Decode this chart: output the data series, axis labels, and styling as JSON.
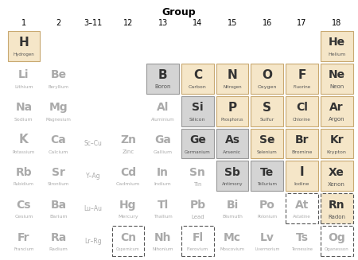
{
  "title": "Group",
  "col_labels": [
    "1",
    "2",
    "3–11",
    "12",
    "13",
    "14",
    "15",
    "16",
    "17",
    "18"
  ],
  "background": "#ffffff",
  "tan_color": "#f5e6c8",
  "gray_color": "#d4d4d4",
  "white_color": "#ffffff",
  "tan_border": "#c8a870",
  "gray_border": "#999999",
  "cells": [
    {
      "row": 0,
      "col": 0,
      "symbol": "H",
      "name": "Hydrogen",
      "type": "tan",
      "dashed": false
    },
    {
      "row": 0,
      "col": 9,
      "symbol": "He",
      "name": "Helium",
      "type": "tan",
      "dashed": false
    },
    {
      "row": 1,
      "col": 0,
      "symbol": "Li",
      "name": "Lithium",
      "type": "white",
      "dashed": false
    },
    {
      "row": 1,
      "col": 1,
      "symbol": "Be",
      "name": "Beryllium",
      "type": "white",
      "dashed": false
    },
    {
      "row": 1,
      "col": 4,
      "symbol": "B",
      "name": "Boron",
      "type": "gray",
      "dashed": false
    },
    {
      "row": 1,
      "col": 5,
      "symbol": "C",
      "name": "Carbon",
      "type": "tan",
      "dashed": false
    },
    {
      "row": 1,
      "col": 6,
      "symbol": "N",
      "name": "Nitrogen",
      "type": "tan",
      "dashed": false
    },
    {
      "row": 1,
      "col": 7,
      "symbol": "O",
      "name": "Oxygen",
      "type": "tan",
      "dashed": false
    },
    {
      "row": 1,
      "col": 8,
      "symbol": "F",
      "name": "Fluorine",
      "type": "tan",
      "dashed": false
    },
    {
      "row": 1,
      "col": 9,
      "symbol": "Ne",
      "name": "Neon",
      "type": "tan",
      "dashed": false
    },
    {
      "row": 2,
      "col": 0,
      "symbol": "Na",
      "name": "Sodium",
      "type": "white",
      "dashed": false
    },
    {
      "row": 2,
      "col": 1,
      "symbol": "Mg",
      "name": "Magnesium",
      "type": "white",
      "dashed": false
    },
    {
      "row": 2,
      "col": 4,
      "symbol": "Al",
      "name": "Aluminium",
      "type": "white",
      "dashed": false
    },
    {
      "row": 2,
      "col": 5,
      "symbol": "Si",
      "name": "Silicon",
      "type": "gray",
      "dashed": false
    },
    {
      "row": 2,
      "col": 6,
      "symbol": "P",
      "name": "Phosphorus",
      "type": "tan",
      "dashed": false
    },
    {
      "row": 2,
      "col": 7,
      "symbol": "S",
      "name": "Sulfur",
      "type": "tan",
      "dashed": false
    },
    {
      "row": 2,
      "col": 8,
      "symbol": "Cl",
      "name": "Chlorine",
      "type": "tan",
      "dashed": false
    },
    {
      "row": 2,
      "col": 9,
      "symbol": "Ar",
      "name": "Argon",
      "type": "tan",
      "dashed": false
    },
    {
      "row": 3,
      "col": 0,
      "symbol": "K",
      "name": "Potassium",
      "type": "white",
      "dashed": false
    },
    {
      "row": 3,
      "col": 1,
      "symbol": "Ca",
      "name": "Calcium",
      "type": "white",
      "dashed": false
    },
    {
      "row": 3,
      "col": 2,
      "symbol": "Sc–Cu",
      "name": "",
      "type": "white",
      "dashed": false
    },
    {
      "row": 3,
      "col": 3,
      "symbol": "Zn",
      "name": "Zinc",
      "type": "white",
      "dashed": false
    },
    {
      "row": 3,
      "col": 4,
      "symbol": "Ga",
      "name": "Gallium",
      "type": "white",
      "dashed": false
    },
    {
      "row": 3,
      "col": 5,
      "symbol": "Ge",
      "name": "Germanium",
      "type": "gray",
      "dashed": false
    },
    {
      "row": 3,
      "col": 6,
      "symbol": "As",
      "name": "Arsenic",
      "type": "gray",
      "dashed": false
    },
    {
      "row": 3,
      "col": 7,
      "symbol": "Se",
      "name": "Selenium",
      "type": "tan",
      "dashed": false
    },
    {
      "row": 3,
      "col": 8,
      "symbol": "Br",
      "name": "Bromine",
      "type": "tan",
      "dashed": false
    },
    {
      "row": 3,
      "col": 9,
      "symbol": "Kr",
      "name": "Krypton",
      "type": "tan",
      "dashed": false
    },
    {
      "row": 4,
      "col": 0,
      "symbol": "Rb",
      "name": "Rubidium",
      "type": "white",
      "dashed": false
    },
    {
      "row": 4,
      "col": 1,
      "symbol": "Sr",
      "name": "Strontium",
      "type": "white",
      "dashed": false
    },
    {
      "row": 4,
      "col": 2,
      "symbol": "Y–Ag",
      "name": "",
      "type": "white",
      "dashed": false
    },
    {
      "row": 4,
      "col": 3,
      "symbol": "Cd",
      "name": "Cadmium",
      "type": "white",
      "dashed": false
    },
    {
      "row": 4,
      "col": 4,
      "symbol": "In",
      "name": "Indium",
      "type": "white",
      "dashed": false
    },
    {
      "row": 4,
      "col": 5,
      "symbol": "Sn",
      "name": "Tin",
      "type": "white",
      "dashed": false
    },
    {
      "row": 4,
      "col": 6,
      "symbol": "Sb",
      "name": "Antimony",
      "type": "gray",
      "dashed": false
    },
    {
      "row": 4,
      "col": 7,
      "symbol": "Te",
      "name": "Tellurium",
      "type": "gray",
      "dashed": false
    },
    {
      "row": 4,
      "col": 8,
      "symbol": "I",
      "name": "Iodine",
      "type": "tan",
      "dashed": false
    },
    {
      "row": 4,
      "col": 9,
      "symbol": "Xe",
      "name": "Xenon",
      "type": "tan",
      "dashed": false
    },
    {
      "row": 5,
      "col": 0,
      "symbol": "Cs",
      "name": "Cesium",
      "type": "white",
      "dashed": false
    },
    {
      "row": 5,
      "col": 1,
      "symbol": "Ba",
      "name": "Barium",
      "type": "white",
      "dashed": false
    },
    {
      "row": 5,
      "col": 2,
      "symbol": "Lu–Au",
      "name": "",
      "type": "white",
      "dashed": false
    },
    {
      "row": 5,
      "col": 3,
      "symbol": "Hg",
      "name": "Mercury",
      "type": "white",
      "dashed": false
    },
    {
      "row": 5,
      "col": 4,
      "symbol": "Tl",
      "name": "Thallium",
      "type": "white",
      "dashed": false
    },
    {
      "row": 5,
      "col": 5,
      "symbol": "Pb",
      "name": "Lead",
      "type": "white",
      "dashed": false
    },
    {
      "row": 5,
      "col": 6,
      "symbol": "Bi",
      "name": "Bismuth",
      "type": "white",
      "dashed": false
    },
    {
      "row": 5,
      "col": 7,
      "symbol": "Po",
      "name": "Polonium",
      "type": "white",
      "dashed": false
    },
    {
      "row": 5,
      "col": 8,
      "symbol": "At",
      "name": "Astatine",
      "type": "white",
      "dashed": true
    },
    {
      "row": 5,
      "col": 9,
      "symbol": "Rn",
      "name": "Radon",
      "type": "tan",
      "dashed": true
    },
    {
      "row": 6,
      "col": 0,
      "symbol": "Fr",
      "name": "Francium",
      "type": "white",
      "dashed": false
    },
    {
      "row": 6,
      "col": 1,
      "symbol": "Ra",
      "name": "Radium",
      "type": "white",
      "dashed": false
    },
    {
      "row": 6,
      "col": 2,
      "symbol": "Lr–Rg",
      "name": "",
      "type": "white",
      "dashed": false
    },
    {
      "row": 6,
      "col": 3,
      "symbol": "Cn",
      "name": "Copernicum",
      "type": "white",
      "dashed": true
    },
    {
      "row": 6,
      "col": 4,
      "symbol": "Nh",
      "name": "Nihonium",
      "type": "white",
      "dashed": false
    },
    {
      "row": 6,
      "col": 5,
      "symbol": "Fl",
      "name": "Flerovium",
      "type": "white",
      "dashed": true
    },
    {
      "row": 6,
      "col": 6,
      "symbol": "Mc",
      "name": "Moscovium",
      "type": "white",
      "dashed": false
    },
    {
      "row": 6,
      "col": 7,
      "symbol": "Lv",
      "name": "Livermorium",
      "type": "white",
      "dashed": false
    },
    {
      "row": 6,
      "col": 8,
      "symbol": "Ts",
      "name": "Tennessine",
      "type": "white",
      "dashed": false
    },
    {
      "row": 6,
      "col": 9,
      "symbol": "Og",
      "name": "Oganesson",
      "type": "white",
      "dashed": true
    }
  ]
}
